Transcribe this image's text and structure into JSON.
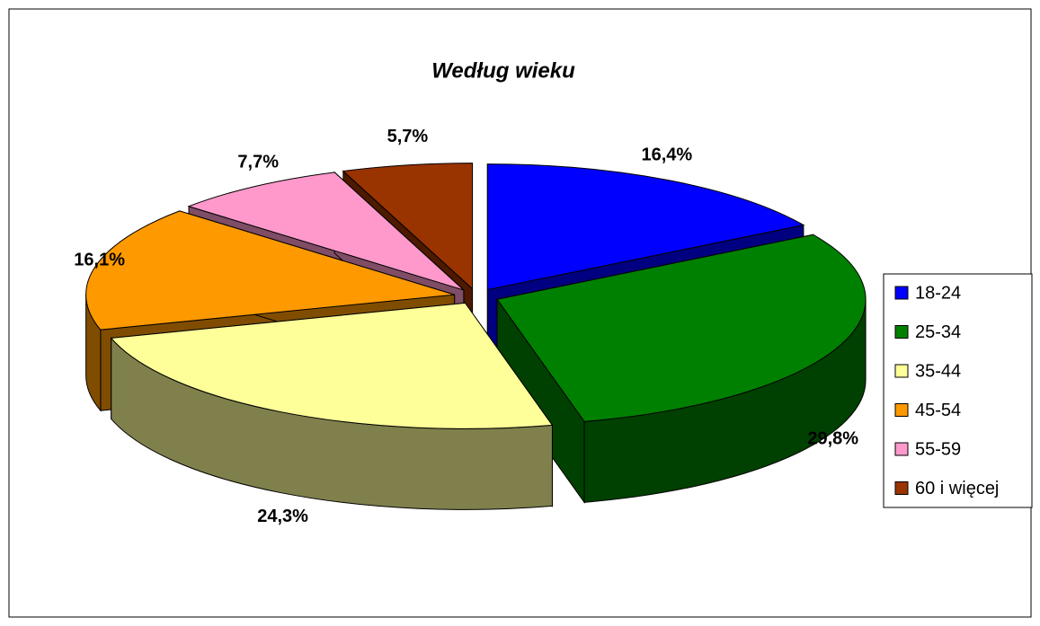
{
  "chart_data": {
    "type": "pie",
    "title": "Według wieku",
    "categories": [
      "18-24",
      "25-34",
      "35-44",
      "45-54",
      "55-59",
      "60 i więcej"
    ],
    "values": [
      16.4,
      29.8,
      24.3,
      16.1,
      7.7,
      5.7
    ],
    "value_labels": [
      "16,4%",
      "29,8%",
      "24,3%",
      "16,1%",
      "7,7%",
      "5,7%"
    ],
    "colors": [
      "#0000ff",
      "#008000",
      "#ffff99",
      "#ff9900",
      "#ff99cc",
      "#993300"
    ],
    "legend": "right"
  }
}
